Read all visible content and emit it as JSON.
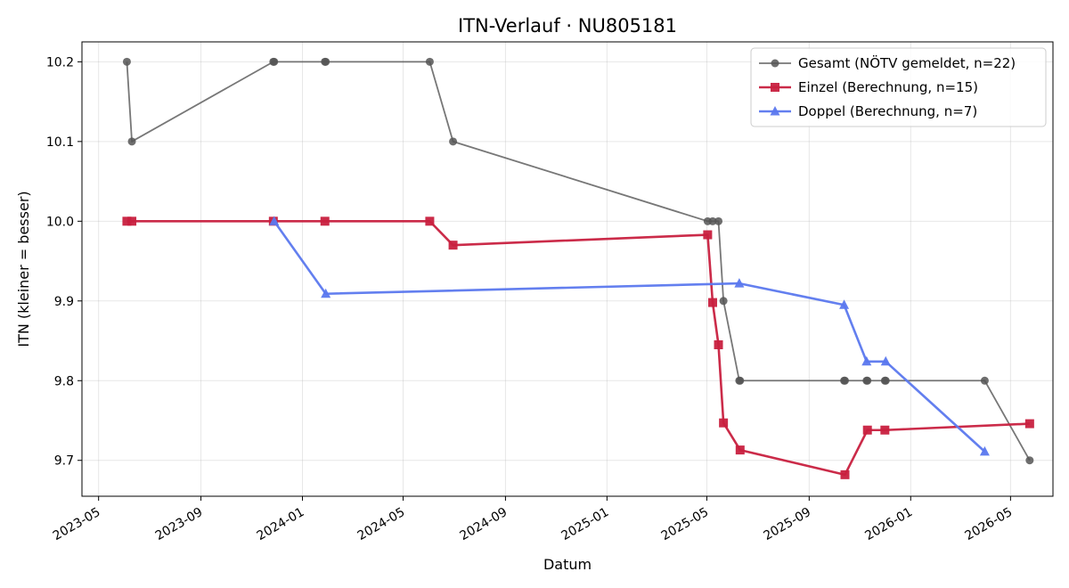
{
  "chart_data": {
    "type": "line",
    "title": "ITN-Verlauf · NU805181",
    "xlabel": "Datum",
    "ylabel": "ITN  (kleiner = besser)",
    "x_type": "date",
    "xlim": [
      "2023-04-11",
      "2026-06-21"
    ],
    "ylim": [
      9.655,
      10.225
    ],
    "xticks": [
      "2023-05-01",
      "2023-09-01",
      "2024-01-01",
      "2024-05-01",
      "2024-09-01",
      "2025-01-01",
      "2025-05-01",
      "2025-09-01",
      "2026-01-01",
      "2026-05-01"
    ],
    "xtick_labels": [
      "2023-05",
      "2023-09",
      "2024-01",
      "2024-05",
      "2024-09",
      "2025-01",
      "2025-05",
      "2025-09",
      "2026-01",
      "2026-05"
    ],
    "yticks": [
      9.7,
      9.8,
      9.9,
      10.0,
      10.1,
      10.2
    ],
    "ytick_labels": [
      "9.7",
      "9.8",
      "9.9",
      "10.0",
      "10.1",
      "10.2"
    ],
    "grid": true,
    "legend_position": "top-right",
    "series": [
      {
        "name": "Gesamt (NÖTV gemeldet, n=22)",
        "color": "#555555",
        "marker": "circle",
        "points": [
          {
            "x": "2023-06-04",
            "y": 10.2
          },
          {
            "x": "2023-06-10",
            "y": 10.1
          },
          {
            "x": "2023-11-27",
            "y": 10.2
          },
          {
            "x": "2023-11-28",
            "y": 10.2
          },
          {
            "x": "2024-01-28",
            "y": 10.2
          },
          {
            "x": "2024-01-29",
            "y": 10.2
          },
          {
            "x": "2024-06-02",
            "y": 10.2
          },
          {
            "x": "2024-06-30",
            "y": 10.1
          },
          {
            "x": "2025-05-02",
            "y": 10.0
          },
          {
            "x": "2025-05-08",
            "y": 10.0
          },
          {
            "x": "2025-05-15",
            "y": 10.0
          },
          {
            "x": "2025-05-21",
            "y": 9.9
          },
          {
            "x": "2025-06-09",
            "y": 9.8
          },
          {
            "x": "2025-06-10",
            "y": 9.8
          },
          {
            "x": "2025-10-13",
            "y": 9.8
          },
          {
            "x": "2025-10-14",
            "y": 9.8
          },
          {
            "x": "2025-11-09",
            "y": 9.8
          },
          {
            "x": "2025-11-10",
            "y": 9.8
          },
          {
            "x": "2025-12-01",
            "y": 9.8
          },
          {
            "x": "2025-12-02",
            "y": 9.8
          },
          {
            "x": "2026-03-31",
            "y": 9.8
          },
          {
            "x": "2026-05-24",
            "y": 9.7
          }
        ]
      },
      {
        "name": "Einzel (Berechnung, n=15)",
        "color": "#c8203f",
        "marker": "square",
        "points": [
          {
            "x": "2023-06-04",
            "y": 10.0
          },
          {
            "x": "2023-06-10",
            "y": 10.0
          },
          {
            "x": "2023-11-27",
            "y": 10.0
          },
          {
            "x": "2024-01-28",
            "y": 10.0
          },
          {
            "x": "2024-06-02",
            "y": 10.0
          },
          {
            "x": "2024-06-30",
            "y": 9.97
          },
          {
            "x": "2025-05-02",
            "y": 9.983
          },
          {
            "x": "2025-05-08",
            "y": 9.898
          },
          {
            "x": "2025-05-15",
            "y": 9.845
          },
          {
            "x": "2025-05-21",
            "y": 9.747
          },
          {
            "x": "2025-06-10",
            "y": 9.713
          },
          {
            "x": "2025-10-14",
            "y": 9.682
          },
          {
            "x": "2025-11-10",
            "y": 9.738
          },
          {
            "x": "2025-12-01",
            "y": 9.738
          },
          {
            "x": "2026-05-24",
            "y": 9.746
          }
        ]
      },
      {
        "name": "Doppel (Berechnung, n=7)",
        "color": "#5b78ee",
        "marker": "triangle",
        "points": [
          {
            "x": "2023-11-28",
            "y": 10.0
          },
          {
            "x": "2024-01-29",
            "y": 9.909
          },
          {
            "x": "2025-06-09",
            "y": 9.922
          },
          {
            "x": "2025-10-13",
            "y": 9.895
          },
          {
            "x": "2025-11-09",
            "y": 9.824
          },
          {
            "x": "2025-12-02",
            "y": 9.824
          },
          {
            "x": "2026-03-31",
            "y": 9.711
          }
        ]
      }
    ]
  }
}
